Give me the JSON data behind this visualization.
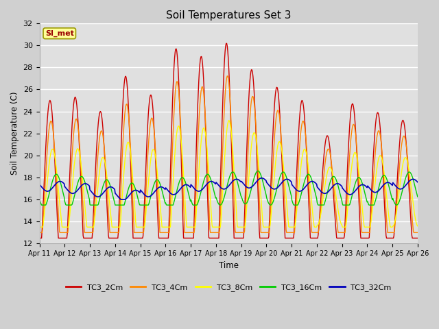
{
  "title": "Soil Temperatures Set 3",
  "xlabel": "Time",
  "ylabel": "Soil Temperature (C)",
  "ylim": [
    12,
    32
  ],
  "yticks": [
    12,
    14,
    16,
    18,
    20,
    22,
    24,
    26,
    28,
    30,
    32
  ],
  "series": {
    "TC3_2Cm": {
      "color": "#cc0000",
      "lw": 1.0
    },
    "TC3_4Cm": {
      "color": "#ff8800",
      "lw": 1.0
    },
    "TC3_8Cm": {
      "color": "#ffff00",
      "lw": 1.0
    },
    "TC3_16Cm": {
      "color": "#00cc00",
      "lw": 1.0
    },
    "TC3_32Cm": {
      "color": "#0000bb",
      "lw": 1.2
    }
  },
  "xtick_labels": [
    "Apr 11",
    "Apr 12",
    "Apr 13",
    "Apr 14",
    "Apr 15",
    "Apr 16",
    "Apr 17",
    "Apr 18",
    "Apr 19",
    "Apr 20",
    "Apr 21",
    "Apr 22",
    "Apr 23",
    "Apr 24",
    "Apr 25",
    "Apr 26"
  ],
  "annotation_text": "SI_met",
  "annotation_bg": "#ffff99",
  "annotation_border": "#999900",
  "fig_bg": "#d0d0d0",
  "plot_bg": "#e0e0e0",
  "grid_color": "#ffffff",
  "n_days": 15,
  "points_per_day": 48,
  "daily_peak_amplitudes_2cm": [
    8.5,
    9.0,
    8.0,
    11.5,
    9.5,
    13.5,
    12.5,
    13.5,
    11.0,
    9.5,
    8.5,
    5.5,
    8.5,
    7.5,
    6.5,
    7.5
  ],
  "base_temp": 16.5,
  "base_trend": [
    0.0,
    -0.2,
    -0.5,
    -0.8,
    -0.5,
    -0.3,
    0.0,
    0.2,
    0.3,
    0.2,
    0.0,
    -0.2,
    -0.3,
    -0.1,
    0.2,
    0.4
  ]
}
